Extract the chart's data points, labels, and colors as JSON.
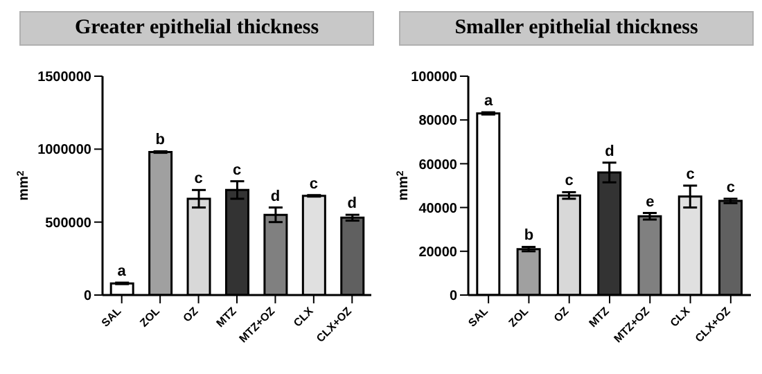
{
  "chart_data": [
    {
      "type": "bar",
      "title": "Greater epithelial thickness",
      "ylabel": "mm$^{2}$",
      "categories": [
        "SAL",
        "ZOL",
        "OZ",
        "MTZ",
        "MTZ+OZ",
        "CLX",
        "CLX+OZ"
      ],
      "values": [
        80000,
        980000,
        660000,
        720000,
        550000,
        680000,
        530000
      ],
      "errors": [
        5000,
        5000,
        60000,
        60000,
        50000,
        5000,
        20000
      ],
      "colors": [
        "#ffffff",
        "#a0a0a0",
        "#d8d8d8",
        "#333333",
        "#808080",
        "#e0e0e0",
        "#606060"
      ],
      "ylim": [
        0,
        1500000
      ],
      "yticks": [
        0,
        500000,
        1000000,
        1500000
      ],
      "grid": false,
      "legend": false,
      "annotations": [
        {
          "text": "a",
          "x": "SAL",
          "y": 85000
        },
        {
          "text": "b",
          "x": "ZOL",
          "y": 985000
        },
        {
          "text": "c",
          "x": "OZ",
          "y": 720000
        },
        {
          "text": "c",
          "x": "MTZ",
          "y": 780000
        },
        {
          "text": "d",
          "x": "MTZ+OZ",
          "y": 600000
        },
        {
          "text": "c",
          "x": "CLX",
          "y": 685000
        },
        {
          "text": "d",
          "x": "CLX+OZ",
          "y": 550000
        }
      ]
    },
    {
      "type": "bar",
      "title": "Smaller epithelial thickness",
      "ylabel": "mm$^{2}$",
      "categories": [
        "SAL",
        "ZOL",
        "OZ",
        "MTZ",
        "MTZ+OZ",
        "CLX",
        "CLX+OZ"
      ],
      "values": [
        83000,
        21000,
        45500,
        56000,
        36000,
        45000,
        43000
      ],
      "errors": [
        500,
        1000,
        1500,
        4500,
        1500,
        5000,
        1000
      ],
      "colors": [
        "#ffffff",
        "#a0a0a0",
        "#d8d8d8",
        "#333333",
        "#808080",
        "#e0e0e0",
        "#606060"
      ],
      "ylim": [
        0,
        100000
      ],
      "yticks": [
        0,
        20000,
        40000,
        60000,
        80000,
        100000
      ],
      "grid": false,
      "legend": false,
      "annotations": [
        {
          "text": "a",
          "x": "SAL",
          "y": 83500
        },
        {
          "text": "b",
          "x": "ZOL",
          "y": 22000
        },
        {
          "text": "c",
          "x": "OZ",
          "y": 47000
        },
        {
          "text": "d",
          "x": "MTZ",
          "y": 60500
        },
        {
          "text": "e",
          "x": "MTZ+OZ",
          "y": 37500
        },
        {
          "text": "c",
          "x": "CLX",
          "y": 50000
        },
        {
          "text": "c",
          "x": "CLX+OZ",
          "y": 44000
        }
      ]
    }
  ]
}
